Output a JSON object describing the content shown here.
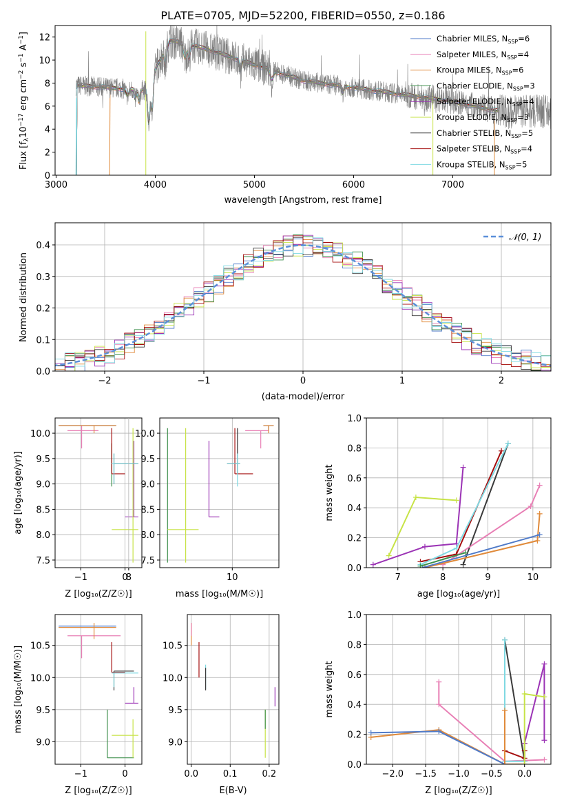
{
  "chart_data": [
    {
      "panel": "spectrum",
      "type": "line",
      "title": "PLATE=0705, MJD=52200, FIBERID=0550, z=0.186",
      "xlabel": "wavelength [Angstrom, rest frame]",
      "ylabel_main": "Flux [f",
      "ylabel_sub": "λ",
      "ylabel_rest": "10",
      "ylabel_exp": "−17",
      "ylabel_units": " erg cm",
      "ylabel_units_exp": "−2",
      "ylabel_units2": " s",
      "ylabel_units2_exp": "−1",
      "ylabel_units3": " A",
      "ylabel_units3_exp": "−1",
      "ylabel_close": "]",
      "xlim": [
        2990,
        7990
      ],
      "ylim": [
        0,
        13
      ],
      "xticks": [
        "3000",
        "4000",
        "5000",
        "6000",
        "7000"
      ],
      "yticks": [
        "0",
        "2",
        "4",
        "6",
        "8",
        "10",
        "12"
      ],
      "legend": [
        {
          "name": "Chabrier MILES",
          "n": "6",
          "color": "#4f7ac8"
        },
        {
          "name": "Salpeter MILES",
          "n": "4",
          "color": "#e87fb5"
        },
        {
          "name": "Kroupa MILES",
          "n": "6",
          "color": "#e08a3a"
        },
        {
          "name": "Chabrier ELODIE",
          "n": "3",
          "color": "#3e8f4c"
        },
        {
          "name": "Salpeter ELODIE",
          "n": "4",
          "color": "#9b33b5"
        },
        {
          "name": "Kroupa ELODIE",
          "n": "3",
          "color": "#c7e346"
        },
        {
          "name": "Chabrier STELIB",
          "n": "5",
          "color": "#3a3a3a"
        },
        {
          "name": "Salpeter STELIB",
          "n": "4",
          "color": "#a50e0e"
        },
        {
          "name": "Kroupa STELIB",
          "n": "5",
          "color": "#7fd9e2"
        }
      ],
      "legend_n_prefix": "N",
      "legend_n_sub": "SSP",
      "legend_n_eq": "="
    },
    {
      "panel": "residual_histogram",
      "type": "line",
      "xlabel": "(data-model)/error",
      "ylabel": "Normed distribution",
      "xlim": [
        -2.5,
        2.5
      ],
      "ylim": [
        0,
        0.47
      ],
      "xticks": [
        "−2",
        "−1",
        "0",
        "1",
        "2"
      ],
      "yticks": [
        "0.0",
        "0.1",
        "0.2",
        "0.3",
        "0.4"
      ],
      "legend": "𝒩(0, 1)",
      "gaussian_sigma": 1.0
    },
    {
      "panel": "age_vs_Z",
      "type": "scatter",
      "xlabel": "Z [log₁₀(Z/Z☉)]",
      "ylabel": "age  [log₁₀(age/yr)]",
      "xlim": [
        -1.58,
        0.38
      ],
      "ylim": [
        7.35,
        10.3
      ],
      "xticks": [
        "−1",
        "0"
      ],
      "yticks": [
        "7.5",
        "8.0",
        "8.5",
        "9.0",
        "9.5",
        "10.0"
      ]
    },
    {
      "panel": "age_vs_mass",
      "type": "scatter",
      "xlabel": "mass [log₁₀(M/M☉)]",
      "xlim": [
        8.6,
        10.9
      ],
      "ylim": [
        7.35,
        10.3
      ],
      "xticks": [
        "8",
        "10"
      ],
      "yticks": [
        "7.5",
        "8.0",
        "8.5",
        "9.0",
        "9.5",
        "10.0"
      ]
    },
    {
      "panel": "mass_weight_vs_age",
      "type": "line",
      "xlabel": "age  [log₁₀(age/yr)]",
      "ylabel": "mass weight",
      "xlim": [
        6.3,
        10.4
      ],
      "ylim": [
        0,
        1.0
      ],
      "xticks": [
        "7",
        "8",
        "9",
        "10"
      ],
      "yticks": [
        "0.0",
        "0.2",
        "0.4",
        "0.6",
        "0.8",
        "1.0"
      ],
      "series": [
        {
          "color": "#c7e346",
          "x": [
            6.8,
            7.4,
            8.3
          ],
          "y": [
            0.08,
            0.47,
            0.45
          ]
        },
        {
          "color": "#9b33b5",
          "x": [
            6.45,
            7.6,
            8.3,
            8.45
          ],
          "y": [
            0.02,
            0.14,
            0.16,
            0.67
          ]
        },
        {
          "color": "#a50e0e",
          "x": [
            7.5,
            8.3,
            9.3
          ],
          "y": [
            0.04,
            0.09,
            0.78
          ]
        },
        {
          "color": "#3a3a3a",
          "x": [
            8.45,
            9.45
          ],
          "y": [
            0.02,
            0.83
          ]
        },
        {
          "color": "#7fd9e2",
          "x": [
            7.5,
            8.3,
            9.45
          ],
          "y": [
            0.02,
            0.13,
            0.83
          ]
        },
        {
          "color": "#e87fb5",
          "x": [
            8.0,
            9.95,
            10.15
          ],
          "y": [
            0.02,
            0.41,
            0.55
          ]
        },
        {
          "color": "#e08a3a",
          "x": [
            7.6,
            10.1,
            10.15
          ],
          "y": [
            0.0,
            0.18,
            0.36
          ]
        },
        {
          "color": "#4f7ac8",
          "x": [
            7.55,
            10.15
          ],
          "y": [
            0.0,
            0.22
          ]
        },
        {
          "color": "#3e8f4c",
          "x": [
            7.5,
            8.5
          ],
          "y": [
            0.01,
            0.1
          ]
        }
      ]
    },
    {
      "panel": "mass_vs_Z",
      "type": "scatter",
      "xlabel": "Z [log₁₀(Z/Z☉)]",
      "ylabel": "mass [log₁₀(M/M☉)]",
      "xlim": [
        -1.58,
        0.38
      ],
      "ylim": [
        8.65,
        10.98
      ],
      "xticks": [
        "−1",
        "0"
      ],
      "yticks": [
        "9.0",
        "9.5",
        "10.0",
        "10.5"
      ]
    },
    {
      "panel": "mass_vs_ebv",
      "type": "scatter",
      "xlabel": "E(B-V)",
      "xlim": [
        -0.01,
        0.225
      ],
      "ylim": [
        8.65,
        10.98
      ],
      "xticks": [
        "0.0",
        "0.1",
        "0.2"
      ],
      "yticks": [
        "9.0",
        "9.5",
        "10.0",
        "10.5"
      ]
    },
    {
      "panel": "mass_weight_vs_Z",
      "type": "line",
      "xlabel": "Z [log₁₀(Z/Z☉)]",
      "ylabel": "mass weight",
      "xlim": [
        -2.4,
        0.4
      ],
      "ylim": [
        0,
        1.0
      ],
      "xticks": [
        "−2.0",
        "−1.5",
        "−1.0",
        "−0.5",
        "0.0"
      ],
      "yticks": [
        "0.0",
        "0.2",
        "0.4",
        "0.6",
        "0.8",
        "1.0"
      ],
      "series": [
        {
          "color": "#e08a3a",
          "x": [
            -2.33,
            -1.3,
            -0.3,
            0.0
          ],
          "y": [
            0.18,
            0.23,
            0.0,
            0.0
          ]
        },
        {
          "color": "#4f7ac8",
          "x": [
            -2.33,
            -1.3,
            -0.3
          ],
          "y": [
            0.21,
            0.22,
            0.0
          ]
        },
        {
          "color": "#e87fb5",
          "x": [
            -1.3,
            -1.3,
            -0.3,
            0.3
          ],
          "y": [
            0.55,
            0.4,
            0.02,
            0.03
          ]
        },
        {
          "color": "#3a3a3a",
          "x": [
            -0.3,
            0.0,
            0.0
          ],
          "y": [
            0.83,
            0.02,
            0.14
          ]
        },
        {
          "color": "#7fd9e2",
          "x": [
            -0.3,
            -0.3,
            0.0
          ],
          "y": [
            0.83,
            0.02,
            0.02
          ]
        },
        {
          "color": "#a50e0e",
          "x": [
            -0.3,
            0.0,
            0.0
          ],
          "y": [
            0.09,
            0.04,
            0.09
          ]
        },
        {
          "color": "#9b33b5",
          "x": [
            0.0,
            0.3,
            0.3
          ],
          "y": [
            0.14,
            0.67,
            0.16
          ]
        },
        {
          "color": "#c7e346",
          "x": [
            0.0,
            0.0,
            0.3
          ],
          "y": [
            0.0,
            0.47,
            0.45
          ]
        },
        {
          "color": "#e08a3a",
          "x": [
            -0.3,
            -0.3
          ],
          "y": [
            0.36,
            0.0
          ]
        }
      ]
    }
  ]
}
